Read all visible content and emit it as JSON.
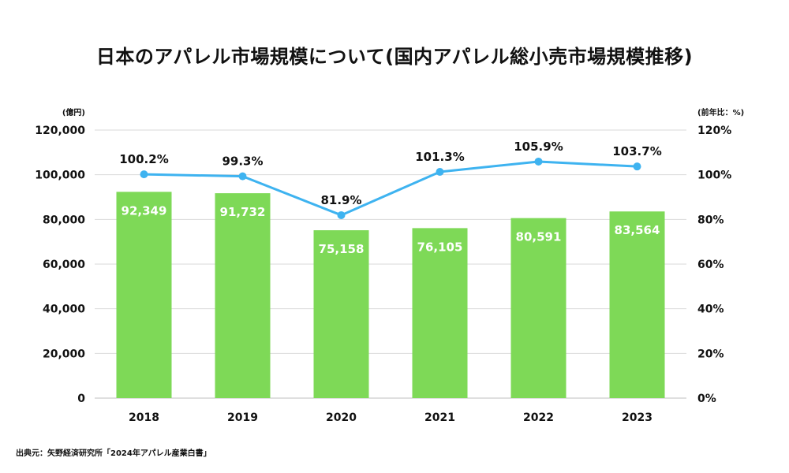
{
  "title": "日本のアパレル市場規模について(国内アパレル総小売市場規模推移)",
  "source": "出典元：矢野経済研究所「2024年アパレル産業白書」",
  "colors": {
    "bar": "#7ed957",
    "line": "#3eb3f0",
    "grid": "#d9d9d9",
    "text": "#111111"
  },
  "chart_data": {
    "type": "bar",
    "combo": "bar+line",
    "categories": [
      "2018",
      "2019",
      "2020",
      "2021",
      "2022",
      "2023"
    ],
    "left_axis": {
      "unit_label": "(億円)",
      "range": [
        0,
        120000
      ],
      "ticks": [
        "0",
        "20,000",
        "40,000",
        "60,000",
        "80,000",
        "100,000",
        "120,000"
      ]
    },
    "right_axis": {
      "unit_label": "(前年比：%)",
      "range": [
        0,
        120
      ],
      "ticks": [
        "0%",
        "20%",
        "40%",
        "60%",
        "80%",
        "100%",
        "120%"
      ]
    },
    "grid": true,
    "series": [
      {
        "type": "bar",
        "axis": "left",
        "values": [
          92349,
          91732,
          75158,
          76105,
          80591,
          83564
        ],
        "labels": [
          "92,349",
          "91,732",
          "75,158",
          "76,105",
          "80,591",
          "83,564"
        ]
      },
      {
        "type": "line",
        "axis": "right",
        "values": [
          100.2,
          99.3,
          81.9,
          101.3,
          105.9,
          103.7
        ],
        "labels": [
          "100.2%",
          "99.3%",
          "81.9%",
          "101.3%",
          "105.9%",
          "103.7%"
        ]
      }
    ]
  }
}
